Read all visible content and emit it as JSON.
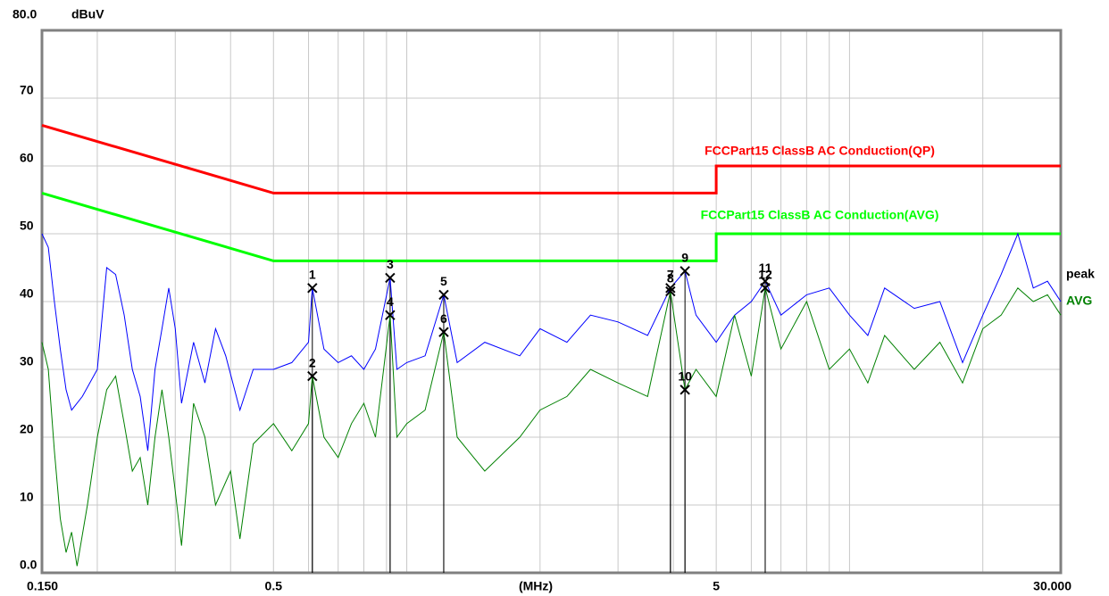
{
  "chart_data": {
    "type": "line",
    "xscale": "log",
    "grid": true,
    "x_axis_label": "(MHz)",
    "y_axis_label": "dBuV",
    "xlim": [
      0.15,
      30
    ],
    "xticks": [
      {
        "value": 0.15,
        "label": "0.150"
      },
      0.5,
      5,
      {
        "value": 30,
        "label": "30.000"
      }
    ],
    "xgrid": [
      0.2,
      0.3,
      0.4,
      0.6,
      0.7,
      0.8,
      0.9,
      1,
      2,
      3,
      4,
      6,
      7,
      8,
      9,
      10,
      20
    ],
    "ylim": [
      0,
      80
    ],
    "yticks": [
      {
        "value": 0,
        "label": "0.0"
      },
      10,
      20,
      30,
      40,
      50,
      60,
      70,
      {
        "value": 80,
        "label": "80.0"
      }
    ],
    "series": [
      {
        "name": "FCCPart15 ClassB AC Conduction(QP)",
        "color": "#ff0000",
        "width": 3,
        "x": [
          0.15,
          0.5,
          5,
          5,
          30
        ],
        "values": [
          66,
          56,
          56,
          60,
          60
        ]
      },
      {
        "name": "FCCPart15 ClassB AC Conduction(AVG)",
        "color": "#00ff00",
        "width": 3,
        "x": [
          0.15,
          0.5,
          5,
          5,
          30
        ],
        "values": [
          56,
          46,
          46,
          50,
          50
        ]
      },
      {
        "name": "peak",
        "color": "#0000ff",
        "width": 1,
        "x": [
          0.15,
          0.155,
          0.16,
          0.165,
          0.17,
          0.175,
          0.185,
          0.2,
          0.21,
          0.22,
          0.23,
          0.24,
          0.25,
          0.26,
          0.27,
          0.28,
          0.29,
          0.3,
          0.31,
          0.33,
          0.35,
          0.37,
          0.39,
          0.42,
          0.45,
          0.5,
          0.55,
          0.6,
          0.612,
          0.65,
          0.7,
          0.75,
          0.8,
          0.85,
          0.917,
          0.95,
          1.0,
          1.1,
          1.212,
          1.3,
          1.5,
          1.8,
          2.0,
          2.3,
          2.6,
          3.0,
          3.5,
          3.94,
          4.25,
          4.5,
          5,
          5.5,
          6,
          6.45,
          7,
          8,
          9,
          10,
          11,
          12,
          14,
          16,
          18,
          20,
          22,
          24,
          25,
          26,
          28,
          30
        ],
        "values": [
          50,
          48,
          40,
          33,
          27,
          24,
          26,
          30,
          45,
          44,
          38,
          30,
          26,
          18,
          30,
          36,
          42,
          36,
          25,
          34,
          28,
          36,
          32,
          24,
          30,
          30,
          31,
          34,
          42,
          33,
          31,
          32,
          30,
          33,
          43.5,
          30,
          31,
          32,
          41,
          31,
          34,
          32,
          36,
          34,
          38,
          37,
          35,
          42,
          44.5,
          38,
          34,
          38,
          40,
          43,
          38,
          41,
          42,
          38,
          35,
          42,
          39,
          40,
          31,
          38,
          44,
          50,
          46,
          42,
          43,
          40
        ]
      },
      {
        "name": "AVG",
        "color": "#008000",
        "width": 1,
        "x": [
          0.15,
          0.155,
          0.16,
          0.165,
          0.17,
          0.175,
          0.18,
          0.19,
          0.2,
          0.21,
          0.22,
          0.23,
          0.24,
          0.25,
          0.26,
          0.27,
          0.28,
          0.29,
          0.3,
          0.31,
          0.33,
          0.35,
          0.37,
          0.4,
          0.42,
          0.45,
          0.5,
          0.55,
          0.6,
          0.612,
          0.65,
          0.7,
          0.75,
          0.8,
          0.85,
          0.917,
          0.95,
          1.0,
          1.1,
          1.212,
          1.3,
          1.5,
          1.8,
          2.0,
          2.3,
          2.6,
          3.0,
          3.5,
          3.94,
          4.25,
          4.5,
          5,
          5.5,
          6,
          6.45,
          7,
          8,
          9,
          10,
          11,
          12,
          14,
          16,
          18,
          20,
          22,
          24,
          26,
          28,
          30
        ],
        "values": [
          34,
          30,
          18,
          8,
          3,
          6,
          1,
          10,
          20,
          27,
          29,
          22,
          15,
          17,
          10,
          20,
          27,
          20,
          12,
          4,
          25,
          20,
          10,
          15,
          5,
          19,
          22,
          18,
          22,
          29,
          20,
          17,
          22,
          25,
          20,
          38,
          20,
          22,
          24,
          35.5,
          20,
          15,
          20,
          24,
          26,
          30,
          28,
          26,
          41.5,
          27,
          30,
          26,
          38,
          29,
          42,
          33,
          40,
          30,
          33,
          28,
          35,
          30,
          34,
          28,
          36,
          38,
          42,
          40,
          41,
          38
        ]
      }
    ],
    "markers": [
      {
        "label": "1",
        "x": 0.612,
        "value": 42
      },
      {
        "label": "2",
        "x": 0.612,
        "value": 29
      },
      {
        "label": "3",
        "x": 0.917,
        "value": 43.5
      },
      {
        "label": "4",
        "x": 0.917,
        "value": 38
      },
      {
        "label": "5",
        "x": 1.212,
        "value": 41
      },
      {
        "label": "6",
        "x": 1.212,
        "value": 35.5
      },
      {
        "label": "7",
        "x": 3.94,
        "value": 42
      },
      {
        "label": "8",
        "x": 3.94,
        "value": 41.5
      },
      {
        "label": "9",
        "x": 4.25,
        "value": 44.5
      },
      {
        "label": "10",
        "x": 4.25,
        "value": 27
      },
      {
        "label": "11",
        "x": 6.45,
        "value": 43
      },
      {
        "label": "12",
        "x": 6.45,
        "value": 42
      }
    ]
  }
}
